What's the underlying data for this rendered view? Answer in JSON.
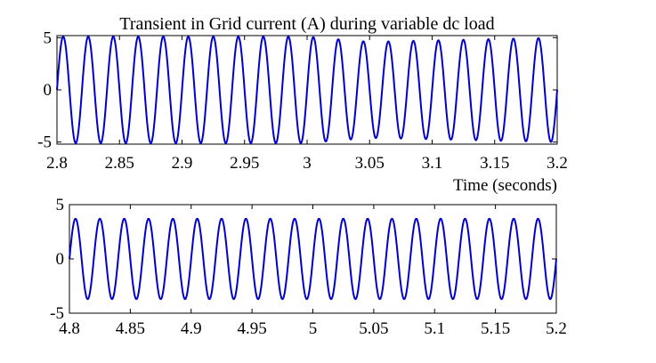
{
  "chart_data": [
    {
      "type": "line",
      "title": "Transient in Grid current (A) during variable  dc load",
      "xlabel": "Time (seconds)",
      "ylabel": "",
      "xlim": [
        2.8,
        3.2
      ],
      "ylim": [
        -5.2,
        5.2
      ],
      "x_ticks": [
        "2.8",
        "2.85",
        "2.9",
        "2.95",
        "3",
        "3.05",
        "3.1",
        "3.15",
        "3.2"
      ],
      "y_ticks": [
        "5",
        "0",
        "-5"
      ],
      "grid": false,
      "series": [
        {
          "color": "#0000cc",
          "frequency_hz": 50,
          "start_phase": "zero-crossing rising at x = 2.8",
          "amplitude_points": [
            [
              2.8,
              5.1
            ],
            [
              3.0,
              5.1
            ],
            [
              3.05,
              4.6
            ],
            [
              3.2,
              5.0
            ]
          ],
          "x_range": [
            2.8,
            3.2
          ]
        }
      ]
    },
    {
      "type": "line",
      "title": "",
      "xlabel": "",
      "ylabel": "",
      "xlim": [
        4.8,
        5.2
      ],
      "ylim": [
        -5,
        5
      ],
      "x_ticks": [
        "4.8",
        "4.85",
        "4.9",
        "4.95",
        "5",
        "5.05",
        "5.1",
        "5.15",
        "5.2"
      ],
      "y_ticks": [
        "5",
        "0",
        "-5"
      ],
      "grid": false,
      "series": [
        {
          "color": "#0000cc",
          "frequency_hz": 50,
          "start_phase": "zero-crossing rising at x = 4.8",
          "amplitude_points": [
            [
              4.8,
              3.7
            ],
            [
              5.2,
              3.7
            ]
          ],
          "x_range": [
            4.8,
            5.2
          ]
        }
      ]
    }
  ]
}
